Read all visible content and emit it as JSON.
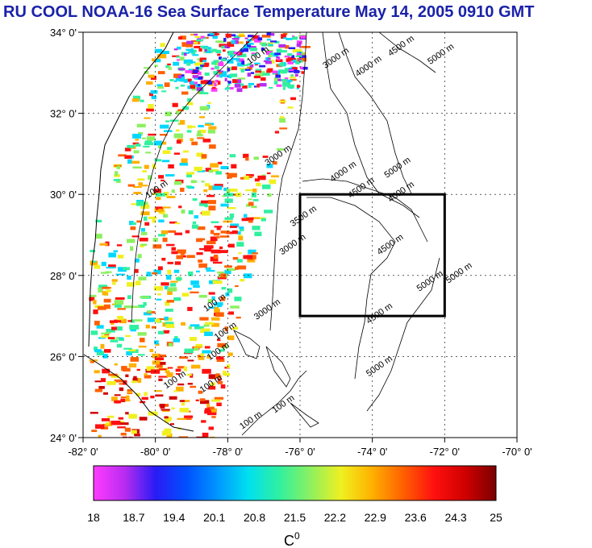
{
  "title": "RU COOL  NOAA-16 Sea Surface Temperature May 14, 2005 0910 GMT",
  "map": {
    "lon_range": [
      -82,
      -70
    ],
    "lat_range": [
      24,
      34
    ],
    "x_ticks": [
      "-82° 0'",
      "-80° 0'",
      "-78° 0'",
      "-76° 0'",
      "-74° 0'",
      "-72° 0'",
      "-70° 0'"
    ],
    "y_ticks": [
      "24° 0'",
      "26° 0'",
      "28° 0'",
      "30° 0'",
      "32° 0'",
      "34° 0'"
    ],
    "grid": true,
    "study_box": {
      "lon": [
        -76,
        -72
      ],
      "lat": [
        27,
        30
      ]
    }
  },
  "contour_labels": [
    {
      "text": "100 m",
      "lon": -77.4,
      "lat": 33.2
    },
    {
      "text": "3000 m",
      "lon": -75.3,
      "lat": 33.1
    },
    {
      "text": "4000 m",
      "lon": -74.4,
      "lat": 32.9
    },
    {
      "text": "4500 m",
      "lon": -73.5,
      "lat": 33.4
    },
    {
      "text": "5000 m",
      "lon": -72.4,
      "lat": 33.2
    },
    {
      "text": "100 m",
      "lon": -80.2,
      "lat": 29.9
    },
    {
      "text": "3000 m",
      "lon": -76.9,
      "lat": 30.7
    },
    {
      "text": "4000 m",
      "lon": -75.1,
      "lat": 30.3
    },
    {
      "text": "5000 m",
      "lon": -73.6,
      "lat": 30.4
    },
    {
      "text": "4500 m",
      "lon": -74.6,
      "lat": 29.9
    },
    {
      "text": "4000 m",
      "lon": -73.5,
      "lat": 29.8
    },
    {
      "text": "3500 m",
      "lon": -76.2,
      "lat": 29.2
    },
    {
      "text": "3000 m",
      "lon": -76.5,
      "lat": 28.5
    },
    {
      "text": "4500 m",
      "lon": -73.8,
      "lat": 28.5
    },
    {
      "text": "5000 m",
      "lon": -72.7,
      "lat": 27.6
    },
    {
      "text": "5000 m",
      "lon": -71.9,
      "lat": 27.8
    },
    {
      "text": "100 m",
      "lon": -78.6,
      "lat": 27.1
    },
    {
      "text": "3000 m",
      "lon": -77.2,
      "lat": 26.9
    },
    {
      "text": "100 m",
      "lon": -78.3,
      "lat": 26.4
    },
    {
      "text": "100 m",
      "lon": -78.5,
      "lat": 25.9
    },
    {
      "text": "4500 m",
      "lon": -74.1,
      "lat": 26.8
    },
    {
      "text": "5000 m",
      "lon": -74.1,
      "lat": 25.5
    },
    {
      "text": "100 m",
      "lon": -79.7,
      "lat": 25.2
    },
    {
      "text": "100 m",
      "lon": -78.7,
      "lat": 25.1
    },
    {
      "text": "100 m",
      "lon": -76.7,
      "lat": 24.6
    },
    {
      "text": "100 m",
      "lon": -77.6,
      "lat": 24.2
    }
  ],
  "colorbar": {
    "ticks": [
      "18",
      "18.7",
      "19.4",
      "20.1",
      "20.8",
      "21.5",
      "22.2",
      "22.9",
      "23.6",
      "24.3",
      "25"
    ],
    "range": [
      18,
      25
    ],
    "stops": [
      "#ff3cff",
      "#b82cf0",
      "#2a1bf5",
      "#0050ff",
      "#0096ff",
      "#00e0f0",
      "#30f0a0",
      "#8cf060",
      "#f0f020",
      "#ffb000",
      "#ff6000",
      "#ff1010",
      "#d00000",
      "#7a0000"
    ],
    "unit_label": "C",
    "unit_superscript": "0"
  }
}
